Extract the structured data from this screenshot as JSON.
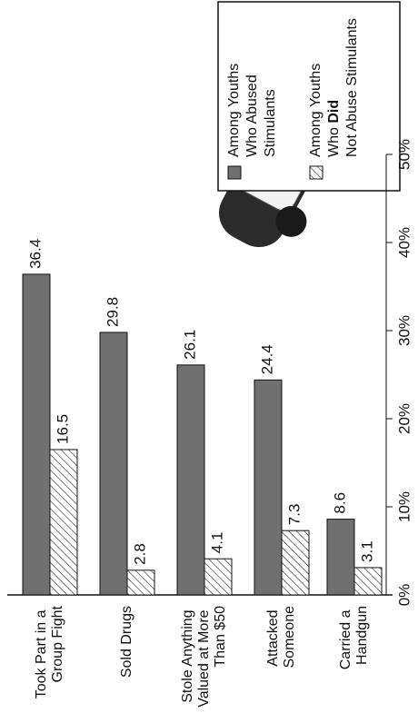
{
  "chart_data": {
    "type": "bar",
    "categories": [
      "Took Part in a Group Fight",
      "Sold Drugs",
      "Stole Anything Valued at More Than $50",
      "Attacked Someone",
      "Carried a Handgun"
    ],
    "series": [
      {
        "name": "Among Youths Who Abused Stimulants",
        "color": "#707070",
        "values": [
          36.4,
          29.8,
          26.1,
          24.4,
          8.6
        ]
      },
      {
        "name": "Among Youths Who Did Not Abuse Stimulants",
        "color": "hatch",
        "values": [
          16.5,
          2.8,
          4.1,
          7.3,
          3.1
        ]
      }
    ],
    "ylim": [
      0,
      50
    ],
    "yticks": [
      {
        "value": 0,
        "label": "0%"
      },
      {
        "value": 10,
        "label": "10%"
      },
      {
        "value": 20,
        "label": "20%"
      },
      {
        "value": 30,
        "label": "30%"
      },
      {
        "value": 40,
        "label": "40%"
      },
      {
        "value": 50,
        "label": "50%"
      }
    ]
  }
}
